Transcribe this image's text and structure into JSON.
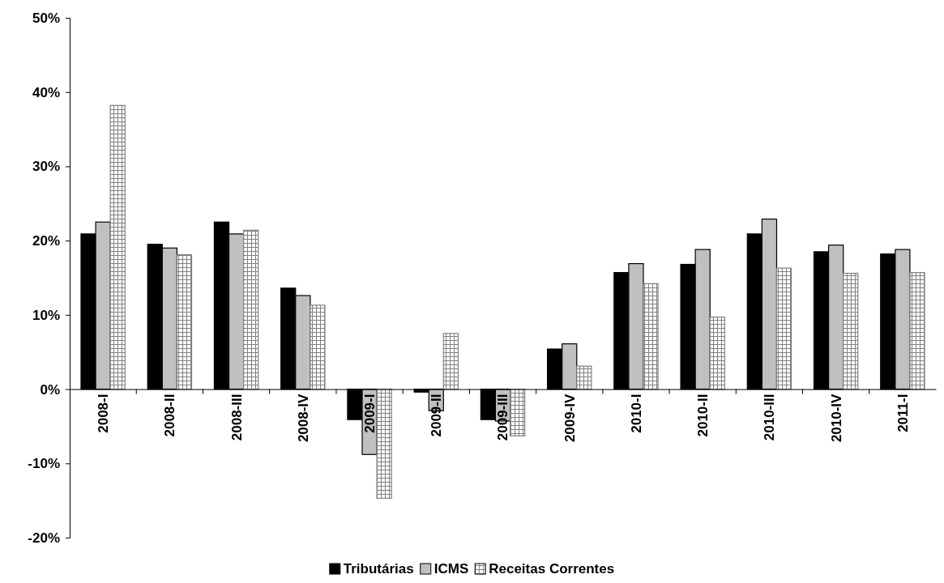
{
  "chart_data": {
    "type": "bar",
    "categories": [
      "2008-I",
      "2008-II",
      "2008-III",
      "2008-IV",
      "2009-I",
      "2009-II",
      "2009-III",
      "2009-IV",
      "2010-I",
      "2010-II",
      "2010-III",
      "2010-IV",
      "2011-I"
    ],
    "series": [
      {
        "name": "Tributárias",
        "color": "#000000",
        "values": [
          20.9,
          19.5,
          22.5,
          13.6,
          -4.1,
          -0.4,
          -4.1,
          5.4,
          15.7,
          16.8,
          20.9,
          18.5,
          18.2
        ]
      },
      {
        "name": "ICMS",
        "color": "#c0c0c0",
        "values": [
          22.5,
          19.0,
          20.9,
          12.6,
          -8.8,
          -2.9,
          -4.3,
          6.1,
          16.9,
          18.8,
          22.9,
          19.4,
          18.8
        ]
      },
      {
        "name": "Receitas Correntes",
        "color": "#808080",
        "values": [
          38.2,
          18.1,
          21.4,
          11.3,
          -14.7,
          7.5,
          -6.3,
          3.1,
          14.2,
          9.7,
          16.3,
          15.6,
          15.7
        ]
      }
    ],
    "ylim": [
      -20,
      50
    ],
    "yticks": [
      {
        "value": -20,
        "label": "-20%"
      },
      {
        "value": -10,
        "label": "-10%"
      },
      {
        "value": 0,
        "label": "0%"
      },
      {
        "value": 10,
        "label": "10%"
      },
      {
        "value": 20,
        "label": "20%"
      },
      {
        "value": 30,
        "label": "30%"
      },
      {
        "value": 40,
        "label": "40%"
      },
      {
        "value": 50,
        "label": "50%"
      }
    ],
    "grid": false,
    "legend": "bottom"
  }
}
